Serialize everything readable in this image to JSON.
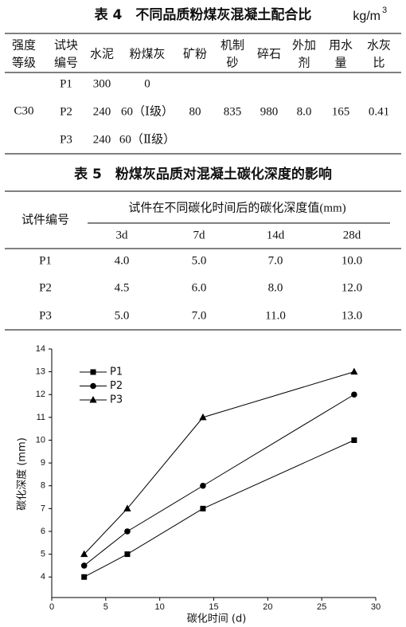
{
  "table4": {
    "title": "表 4　不同品质粉煤灰混凝土配合比",
    "unit": "kg/m",
    "unit_sup": "3",
    "headers": [
      [
        "强度",
        "等级"
      ],
      [
        "试块",
        "编号"
      ],
      [
        "水泥"
      ],
      [
        "粉煤灰"
      ],
      [
        "矿粉"
      ],
      [
        "机制",
        "砂"
      ],
      [
        "碎石"
      ],
      [
        "外加",
        "剂"
      ],
      [
        "用水",
        "量"
      ],
      [
        "水灰",
        "比"
      ]
    ],
    "grade": "C30",
    "rows": [
      [
        "P1",
        "300",
        "0"
      ],
      [
        "P2",
        "240",
        "60（Ⅰ级）",
        "80",
        "835",
        "980",
        "8.0",
        "165",
        "0.41"
      ],
      [
        "P3",
        "240",
        "60（Ⅱ级）"
      ]
    ]
  },
  "table5": {
    "title": "表 5　粉煤灰品质对混凝土碳化深度的影响",
    "id_header": "试件编号",
    "group_header": "试件在不同碳化时间后的碳化深度值(mm)",
    "times": [
      "3d",
      "7d",
      "14d",
      "28d"
    ],
    "rows": [
      [
        "P1",
        "4.0",
        "5.0",
        "7.0",
        "10.0"
      ],
      [
        "P2",
        "4.5",
        "6.0",
        "8.0",
        "12.0"
      ],
      [
        "P3",
        "5.0",
        "7.0",
        "11.0",
        "13.0"
      ]
    ]
  },
  "chart_data": {
    "type": "line",
    "xlabel": "碳化时间 (d)",
    "ylabel": "碳化深度 (mm)",
    "x": [
      3,
      7,
      14,
      28
    ],
    "xlim": [
      0,
      30
    ],
    "xticks": [
      0,
      5,
      10,
      15,
      20,
      25,
      30
    ],
    "ylim": [
      3.1,
      14
    ],
    "yticks": [
      4,
      5,
      6,
      7,
      8,
      9,
      10,
      11,
      12,
      13,
      14
    ],
    "legend": "upper left",
    "series": [
      {
        "name": "P1",
        "color": "#000000",
        "marker": "square",
        "values": [
          4,
          5,
          7,
          10
        ]
      },
      {
        "name": "P2",
        "color": "#000000",
        "marker": "circle",
        "values": [
          4.5,
          6,
          8,
          12
        ]
      },
      {
        "name": "P3",
        "color": "#000000",
        "marker": "triangle",
        "values": [
          5,
          7,
          11,
          13
        ]
      }
    ]
  }
}
